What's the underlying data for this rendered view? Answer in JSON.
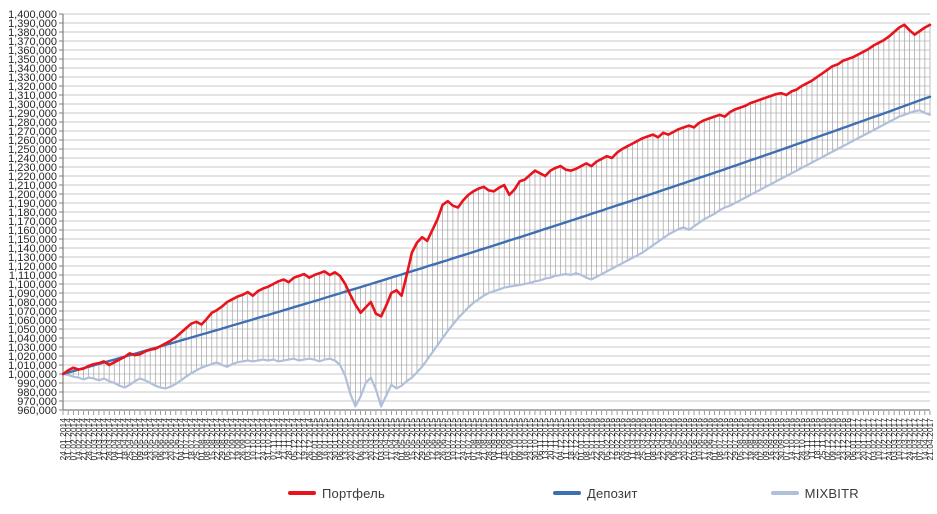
{
  "chart_data": {
    "type": "line",
    "title": "",
    "ylim": [
      960000,
      1400000
    ],
    "ytick": 10000,
    "grid_color": "#c9c9c9",
    "highlow_color": "#a6a6a6",
    "axis_color": "#808080",
    "text_color": "#262626",
    "x_labels": [
      "24.01.2014",
      "31.01.2014",
      "07.02.2014",
      "14.02.2014",
      "21.02.2014",
      "28.02.2014",
      "07.03.2014",
      "14.03.2014",
      "21.03.2014",
      "28.03.2014",
      "04.04.2014",
      "11.04.2014",
      "18.04.2014",
      "25.04.2014",
      "02.05.2014",
      "09.05.2014",
      "16.05.2014",
      "23.05.2014",
      "30.05.2014",
      "06.06.2014",
      "13.06.2014",
      "20.06.2014",
      "27.06.2014",
      "04.07.2014",
      "11.07.2014",
      "18.07.2014",
      "25.07.2014",
      "01.08.2014",
      "08.08.2014",
      "15.08.2014",
      "22.08.2014",
      "29.08.2014",
      "05.09.2014",
      "12.09.2014",
      "19.09.2014",
      "26.09.2014",
      "03.10.2014",
      "10.10.2014",
      "17.10.2014",
      "24.10.2014",
      "31.10.2014",
      "07.11.2014",
      "14.11.2014",
      "21.11.2014",
      "28.11.2014",
      "05.12.2014",
      "12.12.2014",
      "19.12.2014",
      "26.12.2014",
      "02.01.2015",
      "09.01.2015",
      "16.01.2015",
      "23.01.2015",
      "30.01.2015",
      "06.02.2015",
      "13.02.2015",
      "20.02.2015",
      "27.02.2015",
      "06.03.2015",
      "13.03.2015",
      "20.03.2015",
      "27.03.2015",
      "03.04.2015",
      "10.04.2015",
      "17.04.2015",
      "24.04.2015",
      "01.05.2015",
      "08.05.2015",
      "15.05.2015",
      "22.05.2015",
      "29.05.2015",
      "05.06.2015",
      "12.06.2015",
      "19.06.2015",
      "26.06.2015",
      "03.07.2015",
      "10.07.2015",
      "17.07.2015",
      "24.07.2015",
      "31.07.2015",
      "07.08.2015",
      "14.08.2015",
      "21.08.2015",
      "28.08.2015",
      "04.09.2015",
      "11.09.2015",
      "18.09.2015",
      "25.09.2015",
      "02.10.2015",
      "09.10.2015",
      "16.10.2015",
      "23.10.2015",
      "30.10.2015",
      "06.11.2015",
      "13.11.2015",
      "20.11.2015",
      "27.11.2015",
      "04.12.2015",
      "11.12.2015",
      "18.12.2015",
      "25.12.2015",
      "01.01.2016",
      "08.01.2016",
      "15.01.2016",
      "22.01.2016",
      "29.01.2016",
      "05.02.2016",
      "12.02.2016",
      "19.02.2016",
      "26.02.2016",
      "04.03.2016",
      "11.03.2016",
      "18.03.2016",
      "25.03.2016",
      "01.04.2016",
      "08.04.2016",
      "15.04.2016",
      "22.04.2016",
      "29.04.2016",
      "06.05.2016",
      "13.05.2016",
      "20.05.2016",
      "27.05.2016",
      "03.06.2016",
      "10.06.2016",
      "17.06.2016",
      "24.06.2016",
      "01.07.2016",
      "08.07.2016",
      "15.07.2016",
      "22.07.2016",
      "29.07.2016",
      "05.08.2016",
      "12.08.2016",
      "19.08.2016",
      "26.08.2016",
      "02.09.2016",
      "09.09.2016",
      "16.09.2016",
      "23.09.2016",
      "30.09.2016",
      "07.10.2016",
      "14.10.2016",
      "21.10.2016",
      "28.10.2016",
      "04.11.2016",
      "11.11.2016",
      "18.11.2016",
      "25.11.2016",
      "02.12.2016",
      "09.12.2016",
      "16.12.2016",
      "23.12.2016",
      "30.12.2016",
      "06.01.2017",
      "13.01.2017",
      "20.01.2017",
      "27.01.2017",
      "03.02.2017",
      "10.02.2017",
      "17.02.2017",
      "24.02.2017",
      "03.03.2017",
      "10.03.2017",
      "17.03.2017",
      "24.03.2017",
      "31.03.2017",
      "07.04.2017",
      "14.04.2017",
      "21.04.2017"
    ],
    "series": [
      {
        "name": "Портфель",
        "color": "#e8131d",
        "width": 2.6,
        "values": [
          1000000,
          1004000,
          1007000,
          1005000,
          1006000,
          1009000,
          1011000,
          1012000,
          1014000,
          1010000,
          1013000,
          1016000,
          1019000,
          1023000,
          1021000,
          1022000,
          1025000,
          1027000,
          1028000,
          1031000,
          1034000,
          1037000,
          1041000,
          1046000,
          1051000,
          1056000,
          1058000,
          1055000,
          1061000,
          1068000,
          1071000,
          1075000,
          1080000,
          1083000,
          1086000,
          1088000,
          1091000,
          1087000,
          1092000,
          1095000,
          1097000,
          1100000,
          1103000,
          1105000,
          1102000,
          1107000,
          1109000,
          1111000,
          1107000,
          1110000,
          1112000,
          1114000,
          1110000,
          1113000,
          1109000,
          1100000,
          1088000,
          1077000,
          1068000,
          1074000,
          1080000,
          1067000,
          1064000,
          1076000,
          1090000,
          1093000,
          1087000,
          1110000,
          1135000,
          1146000,
          1152000,
          1148000,
          1160000,
          1172000,
          1188000,
          1192000,
          1187000,
          1185000,
          1193000,
          1199000,
          1203000,
          1206000,
          1208000,
          1204000,
          1203000,
          1207000,
          1210000,
          1199000,
          1205000,
          1214000,
          1216000,
          1221000,
          1226000,
          1223000,
          1220000,
          1226000,
          1229000,
          1231000,
          1227000,
          1226000,
          1228000,
          1231000,
          1234000,
          1231000,
          1236000,
          1239000,
          1242000,
          1240000,
          1246000,
          1250000,
          1253000,
          1256000,
          1259000,
          1262000,
          1264000,
          1266000,
          1263000,
          1268000,
          1266000,
          1269000,
          1272000,
          1274000,
          1276000,
          1274000,
          1279000,
          1282000,
          1284000,
          1286000,
          1288000,
          1286000,
          1291000,
          1294000,
          1296000,
          1298000,
          1301000,
          1303000,
          1305000,
          1307000,
          1309000,
          1311000,
          1312000,
          1310000,
          1314000,
          1316000,
          1320000,
          1323000,
          1326000,
          1330000,
          1334000,
          1338000,
          1342000,
          1344000,
          1348000,
          1350000,
          1352000,
          1355000,
          1358000,
          1361000,
          1365000,
          1368000,
          1371000,
          1375000,
          1380000,
          1385000,
          1388000,
          1382000,
          1377000,
          1381000,
          1385000,
          1388000
        ]
      },
      {
        "name": "Депозит",
        "color": "#3e6fb2",
        "width": 2.4,
        "values": [
          1000000,
          1001600,
          1003200,
          1004800,
          1006400,
          1008000,
          1009600,
          1011200,
          1012800,
          1014400,
          1016000,
          1017600,
          1019300,
          1020900,
          1022500,
          1024100,
          1025800,
          1027400,
          1029000,
          1030700,
          1032300,
          1033900,
          1035600,
          1037300,
          1038900,
          1040600,
          1042200,
          1043900,
          1045500,
          1047200,
          1048800,
          1050500,
          1052200,
          1053900,
          1055600,
          1057200,
          1058900,
          1060600,
          1062300,
          1064000,
          1065600,
          1067300,
          1069000,
          1070800,
          1072500,
          1074200,
          1075900,
          1077600,
          1079300,
          1081000,
          1082700,
          1084400,
          1086200,
          1087900,
          1089600,
          1091400,
          1093100,
          1094800,
          1096600,
          1098300,
          1100000,
          1101800,
          1103600,
          1105300,
          1107100,
          1108900,
          1110600,
          1112400,
          1114200,
          1115900,
          1117700,
          1119500,
          1121300,
          1123000,
          1124800,
          1126600,
          1128400,
          1130200,
          1132000,
          1133800,
          1135600,
          1137400,
          1139200,
          1141000,
          1142800,
          1144700,
          1146500,
          1148300,
          1150100,
          1151900,
          1153800,
          1155600,
          1157500,
          1159300,
          1161200,
          1163000,
          1164900,
          1166700,
          1168600,
          1170400,
          1172200,
          1174100,
          1176000,
          1177900,
          1179800,
          1181600,
          1183500,
          1185400,
          1187300,
          1189100,
          1191000,
          1192900,
          1194800,
          1196700,
          1198700,
          1200600,
          1202500,
          1204400,
          1206300,
          1208200,
          1210100,
          1212000,
          1214000,
          1215900,
          1217900,
          1219800,
          1221700,
          1223700,
          1225600,
          1227500,
          1229500,
          1231500,
          1233400,
          1235400,
          1237400,
          1239300,
          1241300,
          1243300,
          1245200,
          1247200,
          1249200,
          1251200,
          1253200,
          1255200,
          1257200,
          1259200,
          1261200,
          1263200,
          1265200,
          1267200,
          1269200,
          1271200,
          1273300,
          1275300,
          1277300,
          1279400,
          1281400,
          1283400,
          1285500,
          1287500,
          1289500,
          1291600,
          1293700,
          1295700,
          1297800,
          1299900,
          1301900,
          1304000,
          1306100,
          1308100
        ]
      },
      {
        "name": "MIXBITR",
        "color": "#b0c0dc",
        "width": 2.2,
        "values": [
          1000000,
          999000,
          997000,
          996000,
          994000,
          996000,
          995000,
          993000,
          995000,
          992000,
          990000,
          987000,
          985000,
          988000,
          992000,
          995000,
          993000,
          990000,
          987000,
          985000,
          984000,
          986000,
          989000,
          993000,
          997000,
          1001000,
          1004000,
          1007000,
          1009000,
          1011000,
          1013000,
          1010000,
          1008000,
          1011000,
          1013000,
          1014000,
          1015000,
          1014000,
          1015000,
          1016000,
          1015000,
          1016000,
          1014000,
          1015000,
          1016000,
          1017000,
          1015000,
          1016000,
          1017000,
          1016000,
          1014000,
          1016000,
          1017000,
          1015000,
          1010000,
          998000,
          978000,
          964000,
          975000,
          990000,
          996000,
          983000,
          964000,
          976000,
          988000,
          984000,
          987000,
          992000,
          996000,
          1002000,
          1008000,
          1016000,
          1024000,
          1032000,
          1040000,
          1048000,
          1055000,
          1062000,
          1068000,
          1074000,
          1079000,
          1083000,
          1087000,
          1090000,
          1092000,
          1094000,
          1096000,
          1097000,
          1098000,
          1099000,
          1100000,
          1101000,
          1103000,
          1104000,
          1106000,
          1107000,
          1109000,
          1110000,
          1111000,
          1110000,
          1112000,
          1110000,
          1107000,
          1105000,
          1108000,
          1111000,
          1114000,
          1117000,
          1120000,
          1123000,
          1126000,
          1129000,
          1132000,
          1135000,
          1139000,
          1143000,
          1147000,
          1151000,
          1155000,
          1158000,
          1161000,
          1163000,
          1160000,
          1164000,
          1168000,
          1172000,
          1175000,
          1178000,
          1182000,
          1185000,
          1187000,
          1190000,
          1193000,
          1196000,
          1199000,
          1202000,
          1205000,
          1208000,
          1211000,
          1214000,
          1217000,
          1220000,
          1223000,
          1226000,
          1229000,
          1232000,
          1235000,
          1238000,
          1241000,
          1244000,
          1247000,
          1250000,
          1253000,
          1256000,
          1259000,
          1262000,
          1265000,
          1268000,
          1271000,
          1274000,
          1277000,
          1280000,
          1283000,
          1286000,
          1288000,
          1290000,
          1292000,
          1293000,
          1290000,
          1288000
        ]
      }
    ]
  },
  "legend": {
    "items": [
      {
        "label": "Портфель"
      },
      {
        "label": "Депозит"
      },
      {
        "label": "MIXBITR"
      }
    ]
  }
}
